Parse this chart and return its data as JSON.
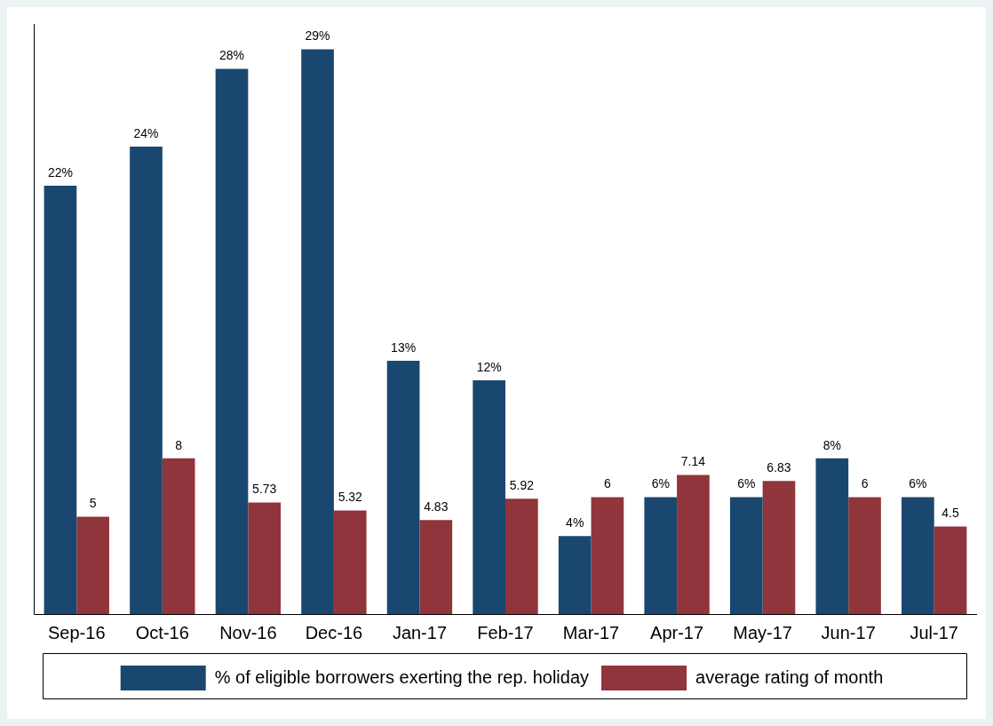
{
  "chart_data": {
    "type": "bar",
    "categories": [
      "Sep-16",
      "Oct-16",
      "Nov-16",
      "Dec-16",
      "Jan-17",
      "Feb-17",
      "Mar-17",
      "Apr-17",
      "May-17",
      "Jun-17",
      "Jul-17"
    ],
    "series": [
      {
        "name": "% of eligible borrowers exerting the rep. holiday",
        "color": "#1a476f",
        "values": [
          22,
          24,
          28,
          29,
          13,
          12,
          4,
          6,
          6,
          8,
          6
        ],
        "value_labels": [
          "22%",
          "24%",
          "28%",
          "29%",
          "13%",
          "12%",
          "4%",
          "6%",
          "6%",
          "8%",
          "6%"
        ]
      },
      {
        "name": "average rating of month",
        "color": "#90353b",
        "values": [
          5,
          8,
          5.73,
          5.32,
          4.83,
          5.92,
          6,
          7.14,
          6.83,
          6,
          4.5
        ],
        "value_labels": [
          "5",
          "8",
          "5.73",
          "5.32",
          "4.83",
          "5.92",
          "6",
          "7.14",
          "6.83",
          "6",
          "4.5"
        ]
      }
    ],
    "ylim": [
      0,
      30.3
    ],
    "tick_labels": "x",
    "grid": false,
    "legend": "bottom"
  }
}
